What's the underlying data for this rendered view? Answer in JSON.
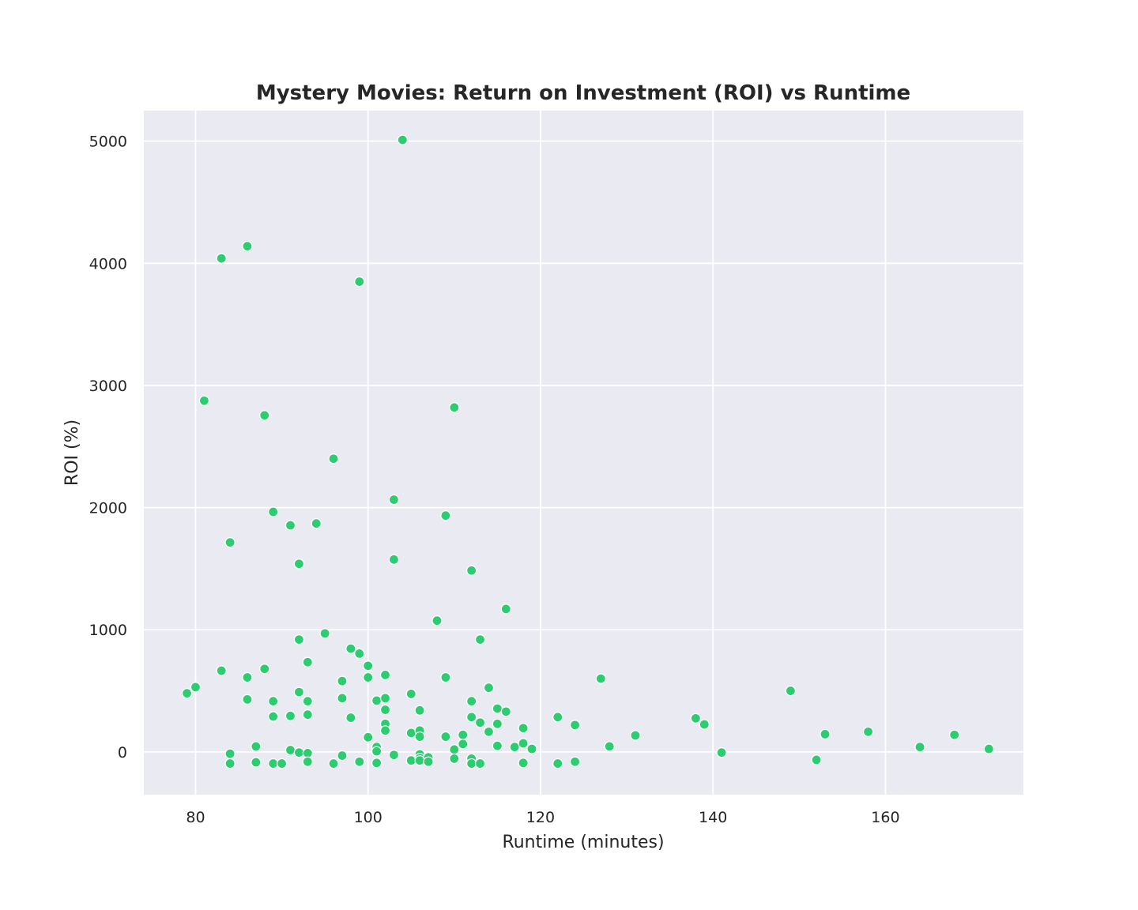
{
  "chart_data": {
    "type": "scatter",
    "title": "Mystery Movies: Return on Investment (ROI) vs Runtime",
    "xlabel": "Runtime (minutes)",
    "ylabel": "ROI (%)",
    "xlim": [
      74,
      176
    ],
    "ylim": [
      -350,
      5250
    ],
    "xticks": [
      80,
      100,
      120,
      140,
      160
    ],
    "yticks": [
      0,
      1000,
      2000,
      3000,
      4000,
      5000
    ],
    "grid": true,
    "background_color": "#eaeaf2",
    "point_color": "#2ecc71",
    "points": [
      {
        "x": 79,
        "y": 480
      },
      {
        "x": 80,
        "y": 530
      },
      {
        "x": 81,
        "y": 2875
      },
      {
        "x": 83,
        "y": 4040
      },
      {
        "x": 83,
        "y": 665
      },
      {
        "x": 84,
        "y": 1715
      },
      {
        "x": 84,
        "y": -15
      },
      {
        "x": 84,
        "y": -95
      },
      {
        "x": 86,
        "y": 4140
      },
      {
        "x": 86,
        "y": 610
      },
      {
        "x": 86,
        "y": 430
      },
      {
        "x": 87,
        "y": 45
      },
      {
        "x": 87,
        "y": -85
      },
      {
        "x": 88,
        "y": 2755
      },
      {
        "x": 88,
        "y": 680
      },
      {
        "x": 89,
        "y": 1965
      },
      {
        "x": 89,
        "y": 415
      },
      {
        "x": 89,
        "y": 290
      },
      {
        "x": 89,
        "y": -95
      },
      {
        "x": 90,
        "y": -95
      },
      {
        "x": 91,
        "y": 1855
      },
      {
        "x": 91,
        "y": 295
      },
      {
        "x": 91,
        "y": 15
      },
      {
        "x": 92,
        "y": 1540
      },
      {
        "x": 92,
        "y": 920
      },
      {
        "x": 92,
        "y": 490
      },
      {
        "x": 92,
        "y": -5
      },
      {
        "x": 93,
        "y": 735
      },
      {
        "x": 93,
        "y": 415
      },
      {
        "x": 93,
        "y": 305
      },
      {
        "x": 93,
        "y": -10
      },
      {
        "x": 93,
        "y": -80
      },
      {
        "x": 94,
        "y": 1870
      },
      {
        "x": 95,
        "y": 970
      },
      {
        "x": 96,
        "y": 2400
      },
      {
        "x": 96,
        "y": -95
      },
      {
        "x": 97,
        "y": 580
      },
      {
        "x": 97,
        "y": 440
      },
      {
        "x": 97,
        "y": -30
      },
      {
        "x": 98,
        "y": 845
      },
      {
        "x": 98,
        "y": 280
      },
      {
        "x": 99,
        "y": 3850
      },
      {
        "x": 99,
        "y": 805
      },
      {
        "x": 99,
        "y": -80
      },
      {
        "x": 100,
        "y": 705
      },
      {
        "x": 100,
        "y": 610
      },
      {
        "x": 100,
        "y": 120
      },
      {
        "x": 101,
        "y": 420
      },
      {
        "x": 101,
        "y": 40
      },
      {
        "x": 101,
        "y": 5
      },
      {
        "x": 101,
        "y": -90
      },
      {
        "x": 102,
        "y": 630
      },
      {
        "x": 102,
        "y": 440
      },
      {
        "x": 102,
        "y": 345
      },
      {
        "x": 102,
        "y": 230
      },
      {
        "x": 102,
        "y": 175
      },
      {
        "x": 103,
        "y": 2065
      },
      {
        "x": 103,
        "y": 1575
      },
      {
        "x": 103,
        "y": -25
      },
      {
        "x": 104,
        "y": 5010
      },
      {
        "x": 105,
        "y": 475
      },
      {
        "x": 105,
        "y": 155
      },
      {
        "x": 105,
        "y": -70
      },
      {
        "x": 106,
        "y": 340
      },
      {
        "x": 106,
        "y": 175
      },
      {
        "x": 106,
        "y": 125
      },
      {
        "x": 106,
        "y": -20
      },
      {
        "x": 106,
        "y": -50
      },
      {
        "x": 106,
        "y": -70
      },
      {
        "x": 107,
        "y": -45
      },
      {
        "x": 107,
        "y": -80
      },
      {
        "x": 108,
        "y": 1075
      },
      {
        "x": 109,
        "y": 1935
      },
      {
        "x": 109,
        "y": 610
      },
      {
        "x": 109,
        "y": 125
      },
      {
        "x": 110,
        "y": 2820
      },
      {
        "x": 110,
        "y": 20
      },
      {
        "x": 110,
        "y": -55
      },
      {
        "x": 111,
        "y": 140
      },
      {
        "x": 111,
        "y": 65
      },
      {
        "x": 112,
        "y": 1485
      },
      {
        "x": 112,
        "y": 415
      },
      {
        "x": 112,
        "y": 285
      },
      {
        "x": 112,
        "y": -55
      },
      {
        "x": 112,
        "y": -95
      },
      {
        "x": 113,
        "y": 920
      },
      {
        "x": 113,
        "y": 240
      },
      {
        "x": 113,
        "y": -95
      },
      {
        "x": 114,
        "y": 525
      },
      {
        "x": 114,
        "y": 165
      },
      {
        "x": 115,
        "y": 355
      },
      {
        "x": 115,
        "y": 230
      },
      {
        "x": 115,
        "y": 50
      },
      {
        "x": 116,
        "y": 1170
      },
      {
        "x": 116,
        "y": 330
      },
      {
        "x": 117,
        "y": 40
      },
      {
        "x": 118,
        "y": 195
      },
      {
        "x": 118,
        "y": 70
      },
      {
        "x": 118,
        "y": -90
      },
      {
        "x": 119,
        "y": 25
      },
      {
        "x": 122,
        "y": 285
      },
      {
        "x": 122,
        "y": -95
      },
      {
        "x": 124,
        "y": 220
      },
      {
        "x": 124,
        "y": -80
      },
      {
        "x": 127,
        "y": 600
      },
      {
        "x": 128,
        "y": 45
      },
      {
        "x": 131,
        "y": 135
      },
      {
        "x": 138,
        "y": 275
      },
      {
        "x": 139,
        "y": 225
      },
      {
        "x": 141,
        "y": -5
      },
      {
        "x": 149,
        "y": 500
      },
      {
        "x": 152,
        "y": -65
      },
      {
        "x": 153,
        "y": 145
      },
      {
        "x": 158,
        "y": 165
      },
      {
        "x": 164,
        "y": 40
      },
      {
        "x": 168,
        "y": 140
      },
      {
        "x": 172,
        "y": 25
      }
    ]
  }
}
